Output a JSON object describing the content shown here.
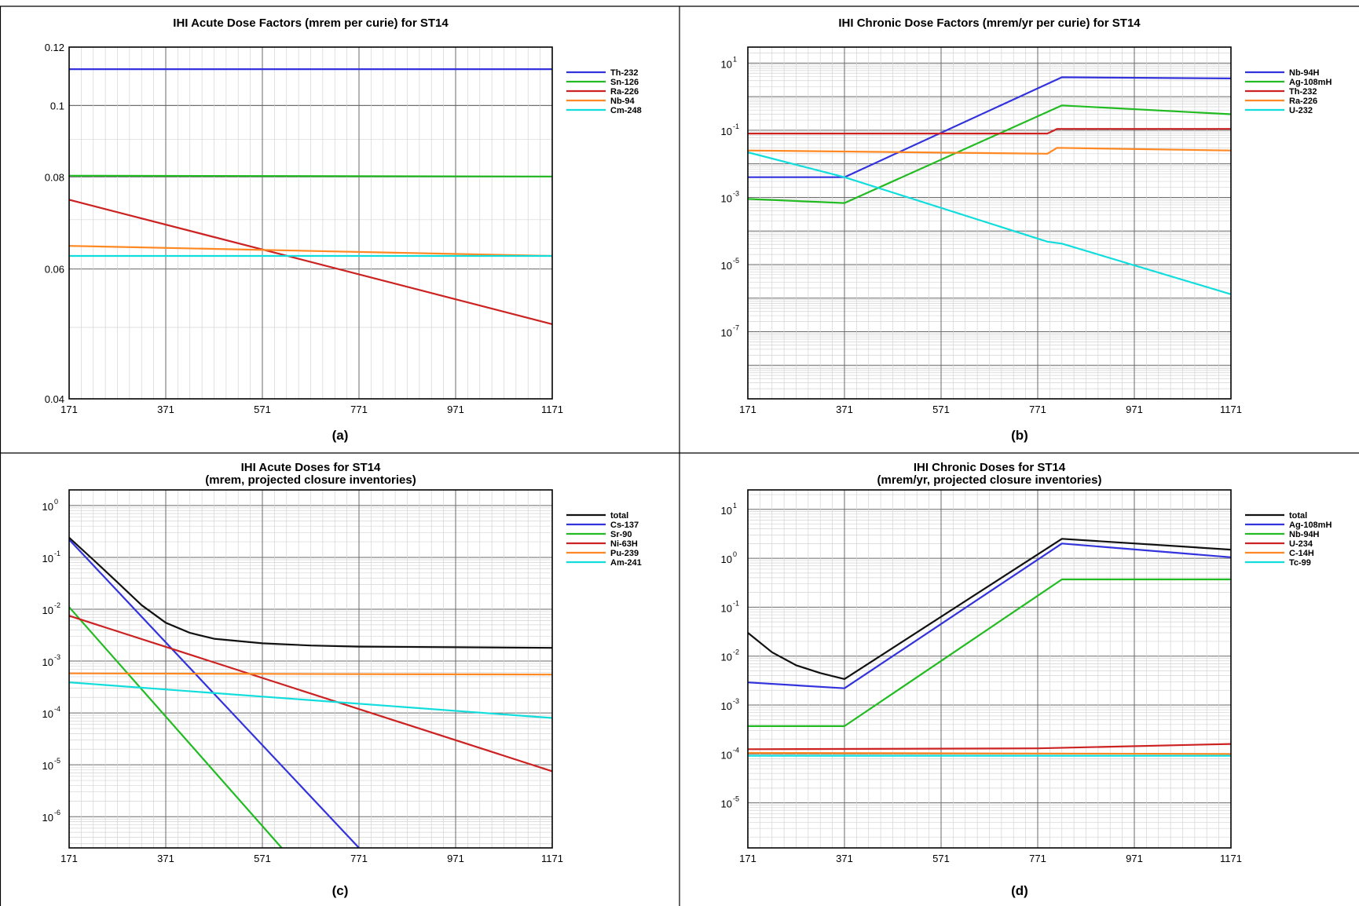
{
  "chart_data": [
    {
      "panel": "(a)",
      "type": "line",
      "title": "IHI Acute Dose Factors (mrem per curie) for ST14",
      "scale": "log",
      "ylim": [
        0.04,
        0.12
      ],
      "yticks": [
        "0.12",
        "0.1",
        "0.08",
        "0.06",
        "0.04"
      ],
      "xlim": [
        171,
        1171
      ],
      "xticks": [
        "171",
        "371",
        "571",
        "771",
        "971",
        "1171"
      ],
      "grid": true,
      "legend_position": "right",
      "series": [
        {
          "name": "Th-232",
          "color": "#3333dd",
          "x": [
            171,
            1171
          ],
          "y": [
            0.112,
            0.112
          ]
        },
        {
          "name": "Sn-126",
          "color": "#22bb22",
          "x": [
            171,
            1171
          ],
          "y": [
            0.0803,
            0.0801
          ]
        },
        {
          "name": "Ra-226",
          "color": "#cc2222",
          "x": [
            171,
            1171
          ],
          "y": [
            0.0745,
            0.0505
          ]
        },
        {
          "name": "Nb-94",
          "color": "#ff8822",
          "x": [
            171,
            1171
          ],
          "y": [
            0.0645,
            0.0625
          ]
        },
        {
          "name": "Cm-248",
          "color": "#11dddd",
          "x": [
            171,
            1171
          ],
          "y": [
            0.0625,
            0.0625
          ]
        }
      ]
    },
    {
      "panel": "(b)",
      "type": "line",
      "title": "IHI Chronic Dose Factors (mrem/yr per curie) for ST14",
      "scale": "log",
      "ylim": [
        1e-09,
        30
      ],
      "yticks": [
        {
          "base": "10",
          "exp": "1",
          "v": 10
        },
        {
          "base": "10",
          "exp": "-1",
          "v": 0.1
        },
        {
          "base": "10",
          "exp": "-3",
          "v": 0.001
        },
        {
          "base": "10",
          "exp": "-5",
          "v": 1e-05
        },
        {
          "base": "10",
          "exp": "-7",
          "v": 1e-07
        }
      ],
      "xlim": [
        171,
        1171
      ],
      "xticks": [
        "171",
        "371",
        "571",
        "771",
        "971",
        "1171"
      ],
      "grid": true,
      "legend_position": "right",
      "series": [
        {
          "name": "Nb-94H",
          "color": "#3333dd",
          "x": [
            171,
            371,
            821,
            1171
          ],
          "y": [
            0.004,
            0.004,
            3.8,
            3.5
          ]
        },
        {
          "name": "Ag-108mH",
          "color": "#22bb22",
          "x": [
            171,
            371,
            821,
            1171
          ],
          "y": [
            0.0009,
            0.00068,
            0.55,
            0.3
          ]
        },
        {
          "name": "Th-232",
          "color": "#cc2222",
          "x": [
            171,
            791,
            811,
            1171
          ],
          "y": [
            0.08,
            0.08,
            0.11,
            0.11
          ]
        },
        {
          "name": "Ra-226",
          "color": "#ff8822",
          "x": [
            171,
            791,
            811,
            1171
          ],
          "y": [
            0.025,
            0.02,
            0.03,
            0.025
          ]
        },
        {
          "name": "U-232",
          "color": "#11dddd",
          "x": [
            171,
            371,
            791,
            821,
            1171
          ],
          "y": [
            0.022,
            0.004,
            4.8e-05,
            4.2e-05,
            1.3e-06
          ]
        }
      ]
    },
    {
      "panel": "(c)",
      "type": "line",
      "title": "IHI Acute Doses for ST14",
      "subtitle": "(mrem, projected closure inventories)",
      "scale": "log",
      "ylim": [
        2.5e-07,
        2
      ],
      "yticks": [
        {
          "base": "10",
          "exp": "0",
          "v": 1
        },
        {
          "base": "10",
          "exp": "-1",
          "v": 0.1
        },
        {
          "base": "10",
          "exp": "-2",
          "v": 0.01
        },
        {
          "base": "10",
          "exp": "-3",
          "v": 0.001
        },
        {
          "base": "10",
          "exp": "-4",
          "v": 0.0001
        },
        {
          "base": "10",
          "exp": "-5",
          "v": 1e-05
        },
        {
          "base": "10",
          "exp": "-6",
          "v": 1e-06
        }
      ],
      "xlim": [
        171,
        1171
      ],
      "xticks": [
        "171",
        "371",
        "571",
        "771",
        "971",
        "1171"
      ],
      "grid": true,
      "legend_position": "right",
      "series": [
        {
          "name": "total",
          "color": "#111111",
          "x": [
            171,
            221,
            271,
            321,
            371,
            421,
            471,
            571,
            671,
            771,
            971,
            1171
          ],
          "y": [
            0.24,
            0.09,
            0.033,
            0.012,
            0.0055,
            0.0035,
            0.0027,
            0.0022,
            0.002,
            0.0019,
            0.00185,
            0.0018
          ]
        },
        {
          "name": "Cs-137",
          "color": "#3333dd",
          "x": [
            171,
            771
          ],
          "y": [
            0.22,
            2.5e-07
          ]
        },
        {
          "name": "Sr-90",
          "color": "#22bb22",
          "x": [
            171,
            611
          ],
          "y": [
            0.011,
            2.5e-07
          ]
        },
        {
          "name": "Ni-63H",
          "color": "#cc2222",
          "x": [
            171,
            1171
          ],
          "y": [
            0.0075,
            7.5e-06
          ]
        },
        {
          "name": "Pu-239",
          "color": "#ff8822",
          "x": [
            171,
            1171
          ],
          "y": [
            0.00058,
            0.00055
          ]
        },
        {
          "name": "Am-241",
          "color": "#11dddd",
          "x": [
            171,
            1171
          ],
          "y": [
            0.00039,
            8e-05
          ]
        }
      ]
    },
    {
      "panel": "(d)",
      "type": "line",
      "title": "IHI Chronic Doses for ST14",
      "subtitle": "(mrem/yr, projected closure inventories)",
      "scale": "log",
      "ylim": [
        1.2e-06,
        25
      ],
      "yticks": [
        {
          "base": "10",
          "exp": "1",
          "v": 10
        },
        {
          "base": "10",
          "exp": "0",
          "v": 1
        },
        {
          "base": "10",
          "exp": "-1",
          "v": 0.1
        },
        {
          "base": "10",
          "exp": "-2",
          "v": 0.01
        },
        {
          "base": "10",
          "exp": "-3",
          "v": 0.001
        },
        {
          "base": "10",
          "exp": "-4",
          "v": 0.0001
        },
        {
          "base": "10",
          "exp": "-5",
          "v": 1e-05
        }
      ],
      "xlim": [
        171,
        1171
      ],
      "xticks": [
        "171",
        "371",
        "571",
        "771",
        "971",
        "1171"
      ],
      "grid": true,
      "legend_position": "right",
      "series": [
        {
          "name": "total",
          "color": "#111111",
          "x": [
            171,
            221,
            271,
            321,
            371,
            821,
            1171
          ],
          "y": [
            0.03,
            0.012,
            0.0065,
            0.0045,
            0.0034,
            2.5,
            1.5
          ]
        },
        {
          "name": "Ag-108mH",
          "color": "#3333dd",
          "x": [
            171,
            371,
            821,
            1171
          ],
          "y": [
            0.0029,
            0.0022,
            2.0,
            1.05
          ]
        },
        {
          "name": "Nb-94H",
          "color": "#22bb22",
          "x": [
            171,
            371,
            821,
            1171
          ],
          "y": [
            0.00037,
            0.00037,
            0.37,
            0.37
          ]
        },
        {
          "name": "U-234",
          "color": "#cc2222",
          "x": [
            171,
            771,
            1171
          ],
          "y": [
            0.000125,
            0.00013,
            0.00016
          ]
        },
        {
          "name": "C-14H",
          "color": "#ff8822",
          "x": [
            171,
            1171
          ],
          "y": [
            0.000105,
            0.0001
          ]
        },
        {
          "name": "Tc-99",
          "color": "#11dddd",
          "x": [
            171,
            1171
          ],
          "y": [
            9.2e-05,
            9.2e-05
          ]
        }
      ]
    }
  ]
}
